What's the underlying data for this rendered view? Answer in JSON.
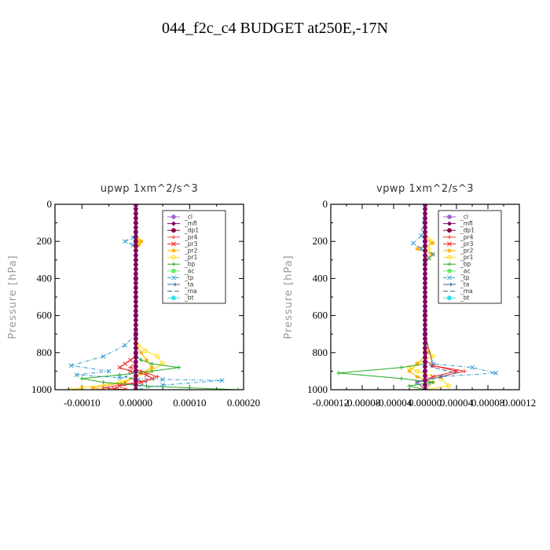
{
  "title": "044_f2c_c4  BUDGET at250E,-17N",
  "legend_entries": [
    {
      "name": "_cl",
      "color": "#9966cc",
      "marker": "circle",
      "dash": ""
    },
    {
      "name": "_mfl",
      "color": "#800060",
      "marker": "diamond",
      "dash": ""
    },
    {
      "name": "_dp1",
      "color": "#880044",
      "marker": "circle",
      "dash": ""
    },
    {
      "name": "_pr4",
      "color": "#ff3333",
      "marker": "cross",
      "dash": ""
    },
    {
      "name": "_pr3",
      "color": "#ee2222",
      "marker": "x",
      "dash": ""
    },
    {
      "name": "_pr2",
      "color": "#ffaa00",
      "marker": "star",
      "dash": ""
    },
    {
      "name": "_pr1",
      "color": "#ffdd00",
      "marker": "circle-open",
      "dash": ""
    },
    {
      "name": "_bp",
      "color": "#22aa22",
      "marker": "cross",
      "dash": ""
    },
    {
      "name": "_ac",
      "color": "#66ee66",
      "marker": "circle",
      "dash": ""
    },
    {
      "name": "_tp",
      "color": "#3399cc",
      "marker": "x",
      "dash": "5,2,1,2"
    },
    {
      "name": "_ta",
      "color": "#3366aa",
      "marker": "arrow",
      "dash": ""
    },
    {
      "name": "_ma",
      "color": "#336699",
      "marker": "none",
      "dash": "6,3"
    },
    {
      "name": "_bt",
      "color": "#33ddee",
      "marker": "circle",
      "dash": ""
    }
  ],
  "chart_data": [
    {
      "type": "line",
      "title": "upwp   1xm^2/s^3",
      "ylabel": "Pressure [hPa]",
      "xlim": [
        -0.00015,
        0.0002
      ],
      "ylim": [
        1000,
        0
      ],
      "xticks": [
        -0.0001,
        0.0,
        0.0001,
        0.0002
      ],
      "xtick_labels": [
        "-0.00010",
        "0.00000",
        "0.00010",
        "0.00020"
      ],
      "yticks": [
        0,
        200,
        400,
        600,
        800,
        1000
      ],
      "ytick_labels": [
        "0",
        "200",
        "400",
        "600",
        "800",
        "1000"
      ],
      "legend": "top-right",
      "grid": false,
      "series": [
        {
          "name": "_pr1",
          "x": [
            0,
            0,
            0,
            0,
            8e-06,
            5e-06,
            0,
            0,
            0,
            0,
            0,
            0,
            0,
            0,
            5e-06,
            1.8e-05,
            4e-05,
            5e-05,
            2.5e-05,
            0,
            -3e-05,
            -0.0001,
            -0.00012
          ],
          "y": [
            0,
            50,
            100,
            150,
            200,
            215,
            230,
            300,
            400,
            500,
            600,
            650,
            700,
            730,
            760,
            790,
            820,
            860,
            900,
            930,
            960,
            990,
            1000
          ]
        },
        {
          "name": "_pr2",
          "x": [
            0,
            0,
            0,
            0,
            1e-05,
            5e-06,
            0,
            0,
            0,
            0,
            0,
            1e-05,
            2e-05,
            3e-05,
            1e-05,
            0,
            -2e-05,
            -8e-05,
            -6e-05
          ],
          "y": [
            0,
            100,
            150,
            180,
            200,
            220,
            240,
            400,
            600,
            700,
            760,
            800,
            840,
            880,
            910,
            930,
            960,
            990,
            1000
          ]
        },
        {
          "name": "_pr3",
          "x": [
            0,
            0,
            0,
            0,
            0,
            -1e-05,
            -2e-05,
            -3e-05,
            -1e-05,
            2e-05,
            3e-05,
            1e-05,
            -3e-05,
            -4e-05,
            -2e-05
          ],
          "y": [
            0,
            200,
            400,
            700,
            820,
            840,
            860,
            880,
            900,
            920,
            940,
            960,
            980,
            995,
            1000
          ]
        },
        {
          "name": "_pr4",
          "x": [
            0,
            0,
            0,
            0,
            -1e-05,
            1e-05,
            4e-05,
            2e-05,
            -2e-05,
            -6e-05,
            -2e-05
          ],
          "y": [
            0,
            400,
            800,
            850,
            880,
            900,
            930,
            950,
            970,
            990,
            1000
          ]
        },
        {
          "name": "_bp",
          "x": [
            0,
            0,
            0,
            0,
            1e-05,
            3e-05,
            8e-05,
            3e-05,
            -3e-05,
            -0.0001,
            -6e-05,
            2e-05,
            0.0001,
            0.00019
          ],
          "y": [
            0,
            300,
            600,
            820,
            840,
            860,
            880,
            900,
            920,
            940,
            960,
            980,
            990,
            1000
          ]
        },
        {
          "name": "_tp",
          "x": [
            0,
            0,
            -5e-06,
            -2e-05,
            -5e-06,
            0,
            0,
            0,
            0,
            -2e-05,
            -6e-05,
            -0.00012,
            -5e-05,
            -0.00011,
            -3e-05,
            5e-05,
            0.00016,
            5e-05,
            0
          ],
          "y": [
            0,
            150,
            180,
            200,
            220,
            240,
            400,
            600,
            700,
            760,
            820,
            870,
            900,
            920,
            935,
            945,
            950,
            975,
            1000
          ]
        },
        {
          "name": "_ma",
          "x": [
            0,
            0,
            0,
            0,
            0,
            0,
            -2e-05,
            2e-05,
            0,
            0
          ],
          "y": [
            0,
            200,
            400,
            600,
            800,
            900,
            930,
            960,
            990,
            1000
          ]
        },
        {
          "name": "_cl",
          "x": [
            0,
            0,
            0,
            0,
            0,
            0,
            0,
            0,
            0,
            0,
            0
          ],
          "y": [
            0,
            100,
            200,
            300,
            400,
            500,
            600,
            700,
            800,
            900,
            1000
          ]
        },
        {
          "name": "_mfl",
          "x": [
            0,
            0,
            0,
            0,
            0,
            0,
            0,
            0,
            0,
            0,
            0
          ],
          "y": [
            0,
            100,
            200,
            300,
            400,
            500,
            600,
            700,
            800,
            900,
            1000
          ]
        },
        {
          "name": "_dp1",
          "x": [
            0,
            0,
            0,
            0,
            0,
            0,
            0,
            0,
            0,
            0,
            0
          ],
          "y": [
            0,
            100,
            200,
            300,
            400,
            500,
            600,
            700,
            800,
            900,
            1000
          ]
        }
      ]
    },
    {
      "type": "line",
      "title": "vpwp   1xm^2/s^3",
      "ylabel": "Pressure [hPa]",
      "xlim": [
        -0.00012,
        0.00012
      ],
      "ylim": [
        1000,
        0
      ],
      "xticks": [
        -0.00012,
        -8e-05,
        -4e-05,
        0.0,
        4e-05,
        8e-05,
        0.00012
      ],
      "xtick_labels": [
        "-0.00012",
        "-0.00008",
        "-0.00004",
        "0.00000",
        "0.00004",
        "0.00008",
        "0.00012"
      ],
      "yticks": [
        0,
        200,
        400,
        600,
        800,
        1000
      ],
      "ytick_labels": [
        "0",
        "200",
        "400",
        "600",
        "800",
        "1000"
      ],
      "legend": "top-right",
      "grid": false,
      "series": [
        {
          "name": "_pr1",
          "x": [
            0,
            0,
            8e-06,
            4e-06,
            8e-06,
            5e-06,
            0,
            0,
            0,
            1e-05,
            -1e-05,
            -2e-05,
            -1e-05,
            2e-05,
            3e-05,
            0
          ],
          "y": [
            0,
            150,
            200,
            240,
            270,
            290,
            320,
            600,
            780,
            820,
            860,
            880,
            900,
            940,
            980,
            1000
          ]
        },
        {
          "name": "_pr2",
          "x": [
            0,
            0,
            1e-05,
            -1e-05,
            1e-05,
            0,
            0,
            5e-06,
            -1e-05,
            -2e-05,
            -1e-05,
            1e-05,
            0
          ],
          "y": [
            0,
            180,
            210,
            240,
            270,
            300,
            700,
            800,
            860,
            900,
            930,
            960,
            1000
          ]
        },
        {
          "name": "_pr3",
          "x": [
            0,
            0,
            0,
            1e-05,
            4e-05,
            1e-05,
            -1e-05,
            0
          ],
          "y": [
            0,
            600,
            840,
            870,
            900,
            930,
            960,
            1000
          ]
        },
        {
          "name": "_pr4",
          "x": [
            0,
            0,
            1e-05,
            5e-05,
            2e-05,
            -1e-05,
            0
          ],
          "y": [
            0,
            700,
            870,
            900,
            930,
            960,
            1000
          ]
        },
        {
          "name": "_bp",
          "x": [
            0,
            0,
            0,
            -3e-05,
            -0.00011,
            -3e-05,
            1e-05,
            -2e-05,
            0
          ],
          "y": [
            0,
            600,
            860,
            880,
            910,
            940,
            960,
            980,
            1000
          ]
        },
        {
          "name": "_tp",
          "x": [
            0,
            -5e-06,
            -1.5e-05,
            -5e-06,
            1e-05,
            5e-06,
            0,
            0,
            1e-05,
            6e-05,
            9e-05,
            2e-05,
            -1e-05,
            0
          ],
          "y": [
            0,
            170,
            210,
            240,
            270,
            290,
            320,
            700,
            860,
            880,
            910,
            930,
            960,
            1000
          ]
        },
        {
          "name": "_ma",
          "x": [
            0,
            0,
            0,
            0,
            1e-05,
            4e-05,
            1e-05,
            0
          ],
          "y": [
            0,
            400,
            700,
            850,
            880,
            910,
            940,
            1000
          ]
        },
        {
          "name": "_cl",
          "x": [
            0,
            0,
            0,
            0,
            0,
            0,
            0,
            0,
            0,
            0,
            0
          ],
          "y": [
            0,
            100,
            200,
            300,
            400,
            500,
            600,
            700,
            800,
            900,
            1000
          ]
        },
        {
          "name": "_mfl",
          "x": [
            0,
            0,
            0,
            0,
            0,
            0,
            0,
            0,
            0,
            0,
            0
          ],
          "y": [
            0,
            100,
            200,
            300,
            400,
            500,
            600,
            700,
            800,
            900,
            1000
          ]
        },
        {
          "name": "_dp1",
          "x": [
            0,
            0,
            0,
            0,
            0,
            0,
            0,
            0,
            0,
            0,
            0
          ],
          "y": [
            0,
            100,
            200,
            300,
            400,
            500,
            600,
            700,
            800,
            900,
            1000
          ]
        }
      ]
    }
  ]
}
